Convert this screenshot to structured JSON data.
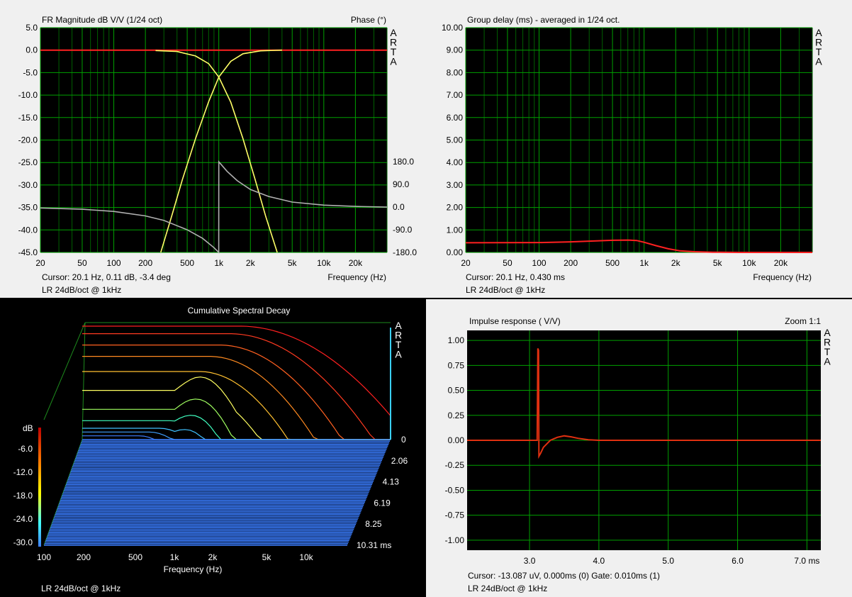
{
  "watermark": [
    "A",
    "R",
    "T",
    "A"
  ],
  "chart_data": [
    {
      "type": "line",
      "title": "FR Magnitude dB V/V (1/24 oct)",
      "right_title": "Phase (°)",
      "xlabel": "Frequency (Hz)",
      "xscale": "log",
      "xlim": [
        20,
        40000
      ],
      "ylim": [
        -45,
        5
      ],
      "y2lim": [
        -180,
        180
      ],
      "grid": true,
      "x_ticks": [
        "20",
        "50",
        "100",
        "200",
        "500",
        "1k",
        "2k",
        "5k",
        "10k",
        "20k"
      ],
      "x_tick_values": [
        20,
        50,
        100,
        200,
        500,
        1000,
        2000,
        5000,
        10000,
        20000
      ],
      "y_ticks": [
        "5.0",
        "0.0",
        "-5.0",
        "-10.0",
        "-15.0",
        "-20.0",
        "-25.0",
        "-30.0",
        "-35.0",
        "-40.0",
        "-45.0"
      ],
      "y2_ticks": [
        "180.0",
        "90.0",
        "0.0",
        "-90.0",
        "-180.0"
      ],
      "cursor_text": "Cursor: 20.1 Hz, 0.11 dB, -3.4 deg",
      "footer": "LR 24dB/oct @ 1kHz",
      "colors": {
        "sum": "#ff2020",
        "lowpass": "#ffff66",
        "highpass": "#ffff66",
        "phase": "#b0b0b0"
      },
      "series": [
        {
          "role": "sum",
          "x": [
            20,
            40000
          ],
          "y": [
            0,
            0
          ]
        },
        {
          "role": "lowpass",
          "x": [
            250,
            400,
            600,
            800,
            1000,
            1300,
            1700,
            2200,
            2800,
            3600
          ],
          "y": [
            -0.1,
            -0.3,
            -1.3,
            -3.0,
            -6.0,
            -11.6,
            -19.7,
            -28.5,
            -37.0,
            -45.0
          ]
        },
        {
          "role": "highpass",
          "x": [
            280,
            360,
            450,
            600,
            800,
            1000,
            1300,
            1700,
            2500,
            4000
          ],
          "y": [
            -45.0,
            -36.5,
            -28.8,
            -19.7,
            -11.5,
            -6.0,
            -2.5,
            -0.8,
            -0.15,
            0.0
          ]
        },
        {
          "role": "phase",
          "axis": "y2",
          "x": [
            20,
            50,
            100,
            200,
            300,
            500,
            700,
            900,
            999,
            1001,
            1200,
            1500,
            2000,
            3000,
            5000,
            10000,
            20000,
            40000
          ],
          "y": [
            -3.4,
            -8.5,
            -17,
            -35,
            -53,
            -90,
            -124,
            -161,
            -180,
            180,
            142,
            105,
            70,
            42,
            20,
            8,
            3,
            0
          ]
        }
      ]
    },
    {
      "type": "line",
      "title": "Group delay (ms) - averaged in 1/24 oct.",
      "xlabel": "Frequency (Hz)",
      "xscale": "log",
      "xlim": [
        20,
        40000
      ],
      "ylim": [
        0,
        10
      ],
      "grid": true,
      "x_ticks": [
        "20",
        "50",
        "100",
        "200",
        "500",
        "1k",
        "2k",
        "5k",
        "10k",
        "20k"
      ],
      "x_tick_values": [
        20,
        50,
        100,
        200,
        500,
        1000,
        2000,
        5000,
        10000,
        20000
      ],
      "y_ticks": [
        "10.00",
        "9.00",
        "8.00",
        "7.00",
        "6.00",
        "5.00",
        "4.00",
        "3.00",
        "2.00",
        "1.00",
        "0.00"
      ],
      "cursor_text": "Cursor: 20.1 Hz, 0.430 ms",
      "footer": "LR 24dB/oct @ 1kHz",
      "colors": {
        "line": "#ff2020"
      },
      "series": [
        {
          "x": [
            20,
            100,
            200,
            300,
            500,
            700,
            850,
            1000,
            1300,
            1700,
            2200,
            3000,
            4500,
            8000,
            40000
          ],
          "y": [
            0.43,
            0.44,
            0.47,
            0.5,
            0.54,
            0.55,
            0.53,
            0.45,
            0.3,
            0.16,
            0.07,
            0.03,
            0.01,
            0.0,
            0.0
          ]
        }
      ]
    },
    {
      "type": "waterfall",
      "title": "Cumulative Spectral Decay",
      "xlabel": "Frequency (Hz)",
      "zlabel": "dB",
      "x_ticks": [
        "100",
        "200",
        "500",
        "1k",
        "2k",
        "5k",
        "10k"
      ],
      "z_ticks": [
        "-6.0",
        "-12.0",
        "-18.0",
        "-24.0",
        "-30.0"
      ],
      "time_ticks": [
        "0",
        "2.06",
        "4.13",
        "6.19",
        "8.25",
        "10.31 ms"
      ],
      "footer": "LR 24dB/oct @ 1kHz",
      "colors": {
        "floor": "#3a7dff"
      }
    },
    {
      "type": "line",
      "title": "Impulse response ( V/V)",
      "right_title": "Zoom 1:1",
      "xlim": [
        2.1,
        7.2
      ],
      "ylim": [
        -1.1,
        1.1
      ],
      "grid": true,
      "x_ticks": [
        "3.0",
        "4.0",
        "5.0",
        "6.0",
        "7.0 ms"
      ],
      "x_tick_values": [
        3,
        4,
        5,
        6,
        7
      ],
      "y_ticks": [
        "1.00",
        "0.75",
        "0.50",
        "0.25",
        "0.00",
        "-0.25",
        "-0.50",
        "-0.75",
        "-1.00"
      ],
      "cursor_text": "Cursor: -13.087 uV, 0.000ms (0)  Gate: 0.010ms (1)",
      "footer": "LR 24dB/oct @ 1kHz",
      "colors": {
        "line": "#e03010"
      },
      "series": [
        {
          "x": [
            2.1,
            3.11,
            3.12,
            3.13,
            3.135,
            3.16,
            3.2,
            3.3,
            3.4,
            3.5,
            3.6,
            3.7,
            3.85,
            4.0,
            7.2
          ],
          "y": [
            0,
            0,
            0.92,
            0.9,
            -0.16,
            -0.13,
            -0.07,
            0.0,
            0.03,
            0.045,
            0.035,
            0.02,
            0.005,
            0,
            0
          ]
        }
      ]
    }
  ]
}
